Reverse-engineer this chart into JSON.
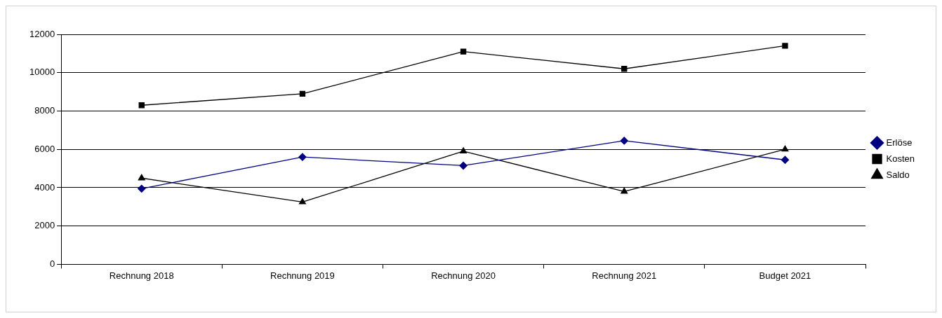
{
  "chart_data": {
    "type": "line",
    "categories": [
      "Rechnung 2018",
      "Rechnung 2019",
      "Rechnung 2020",
      "Rechnung 2021",
      "Budget 2021"
    ],
    "series": [
      {
        "name": "Erlöse",
        "color": "#000080",
        "marker": "diamond",
        "values": [
          3950,
          5600,
          5150,
          6450,
          5450
        ]
      },
      {
        "name": "Kosten",
        "color": "#000000",
        "marker": "square",
        "values": [
          8300,
          8900,
          11100,
          10200,
          11400
        ]
      },
      {
        "name": "Saldo",
        "color": "#000000",
        "marker": "triangle",
        "values": [
          4500,
          3250,
          5900,
          3800,
          6000
        ]
      }
    ],
    "ylim": [
      0,
      12000
    ],
    "yticks": [
      0,
      2000,
      4000,
      6000,
      8000,
      10000,
      12000
    ],
    "grid": "y",
    "legend": "right",
    "line_style": "solid"
  }
}
